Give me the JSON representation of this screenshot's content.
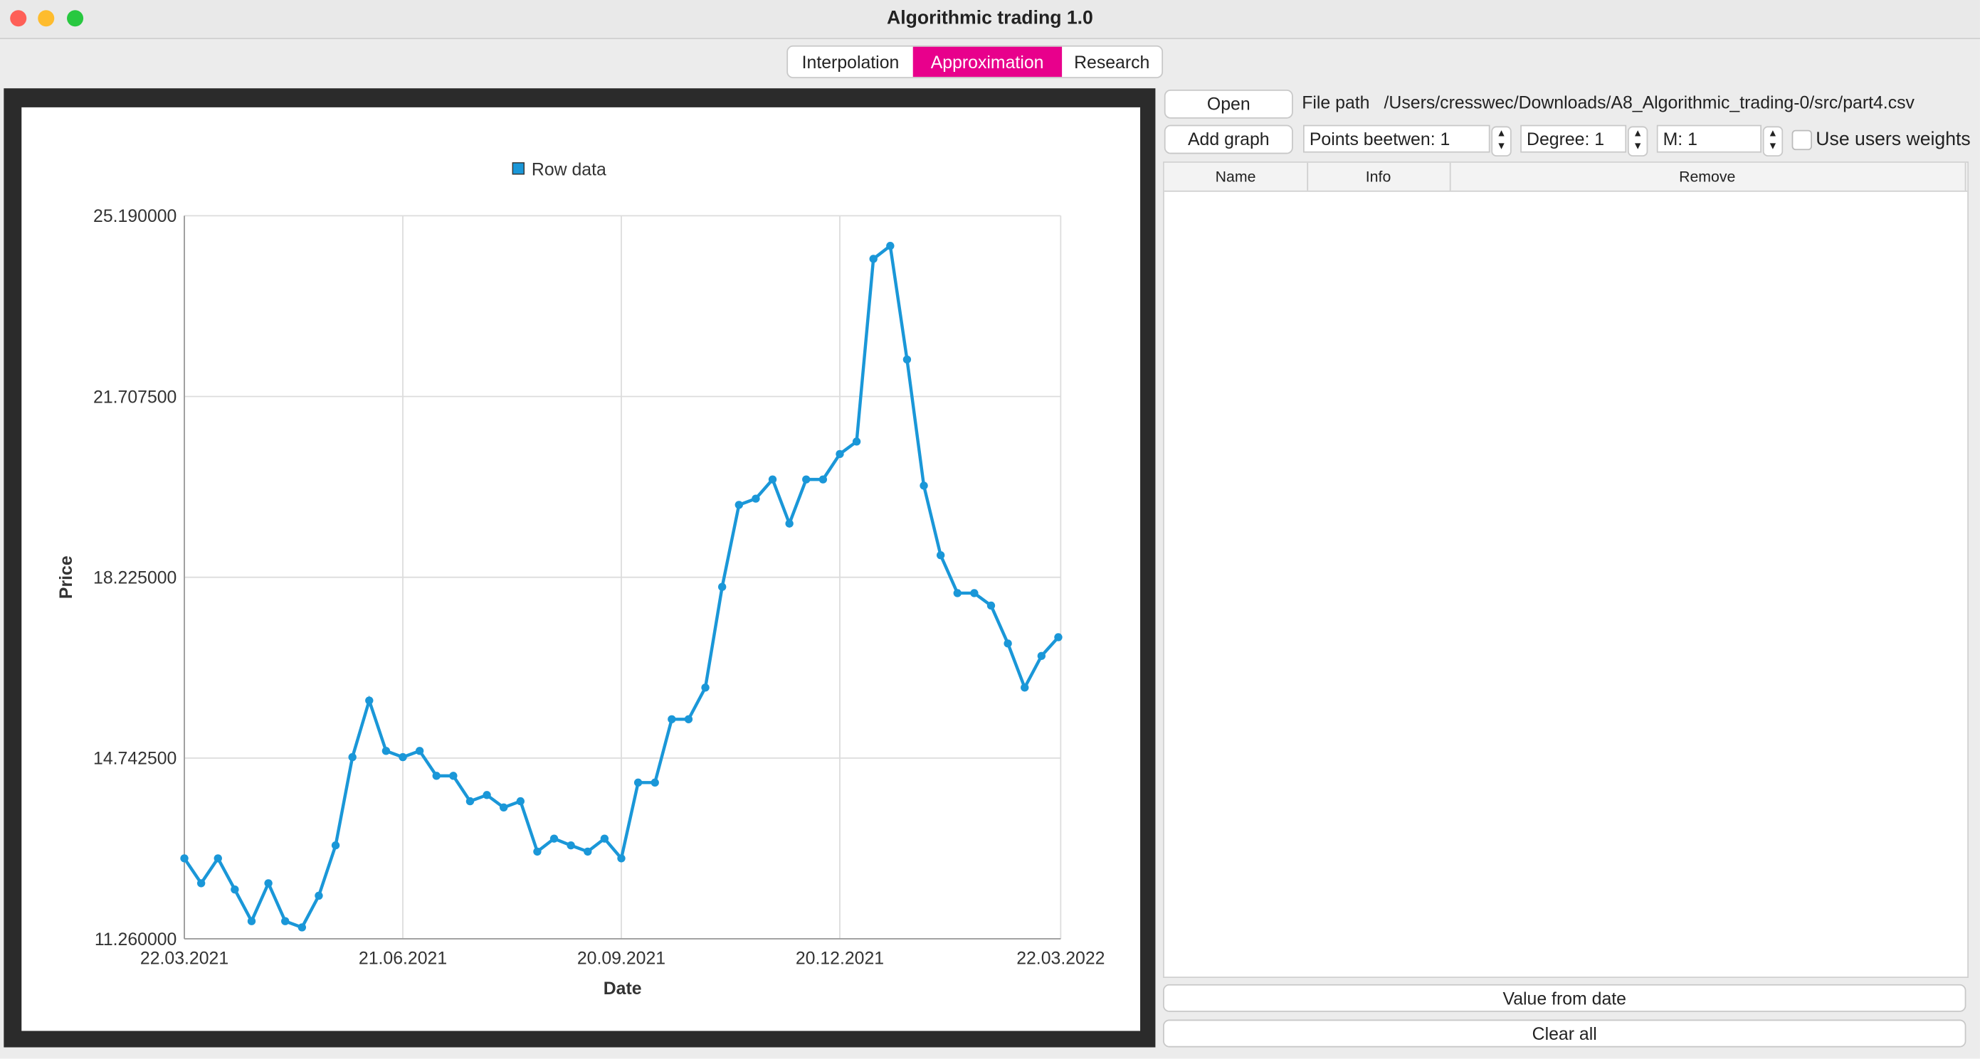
{
  "window_title": "Algorithmic trading 1.0",
  "tabs": [
    "Interpolation",
    "Approximation",
    "Research"
  ],
  "controls": {
    "open": "Open",
    "file_path_label": "File path",
    "file_path": "/Users/cresswec/Downloads/A8_Algorithmic_trading-0/src/part4.csv",
    "add_graph": "Add graph",
    "points_between": "Points beetwen: 1",
    "degree": "Degree: 1",
    "m": "M: 1",
    "use_weights": "Use users weights"
  },
  "table": {
    "headers": [
      "Name",
      "Info",
      "Remove"
    ]
  },
  "buttons": {
    "value_from_date": "Value from date",
    "clear_all": "Clear all"
  },
  "chart_data": {
    "type": "line",
    "x_label": "Date",
    "y_label": "Price",
    "x": [
      "2021-03-22",
      "2021-03-29",
      "2021-04-05",
      "2021-04-12",
      "2021-04-19",
      "2021-04-26",
      "2021-05-03",
      "2021-05-10",
      "2021-05-17",
      "2021-05-24",
      "2021-05-31",
      "2021-06-07",
      "2021-06-14",
      "2021-06-21",
      "2021-06-28",
      "2021-07-05",
      "2021-07-12",
      "2021-07-19",
      "2021-07-26",
      "2021-08-02",
      "2021-08-09",
      "2021-08-16",
      "2021-08-23",
      "2021-08-30",
      "2021-09-06",
      "2021-09-13",
      "2021-09-20",
      "2021-09-27",
      "2021-10-04",
      "2021-10-11",
      "2021-10-18",
      "2021-10-25",
      "2021-11-01",
      "2021-11-08",
      "2021-11-15",
      "2021-11-22",
      "2021-11-29",
      "2021-12-06",
      "2021-12-13",
      "2021-12-20",
      "2021-12-27",
      "2022-01-03",
      "2022-01-10",
      "2022-01-17",
      "2022-01-24",
      "2022-01-31",
      "2022-02-07",
      "2022-02-14",
      "2022-02-21",
      "2022-02-28",
      "2022-03-07",
      "2022-03-14",
      "2022-03-21"
    ],
    "series": [
      {
        "name": "Row data",
        "color": "#1a97d8",
        "values": [
          12.81,
          12.33,
          12.81,
          12.21,
          11.6,
          12.33,
          11.6,
          11.48,
          12.09,
          13.06,
          14.76,
          15.85,
          14.88,
          14.76,
          14.88,
          14.4,
          14.4,
          13.91,
          14.03,
          13.79,
          13.91,
          12.94,
          13.19,
          13.06,
          12.94,
          13.19,
          12.81,
          14.27,
          14.27,
          15.49,
          15.49,
          16.1,
          18.04,
          19.62,
          19.74,
          20.11,
          19.26,
          20.11,
          20.11,
          20.6,
          20.84,
          24.36,
          24.61,
          22.42,
          19.99,
          18.65,
          17.92,
          17.92,
          17.68,
          16.95,
          16.1,
          16.71,
          17.07
        ]
      }
    ],
    "xlim": [
      "2021-03-22",
      "2022-03-22"
    ],
    "xticks": [
      {
        "value": "2021-03-22",
        "label": "22.03.2021"
      },
      {
        "value": "2021-06-21",
        "label": "21.06.2021"
      },
      {
        "value": "2021-09-20",
        "label": "20.09.2021"
      },
      {
        "value": "2021-12-20",
        "label": "20.12.2021"
      },
      {
        "value": "2022-03-22",
        "label": "22.03.2022"
      }
    ],
    "ylim": [
      11.26,
      25.19
    ],
    "yticks": [
      {
        "value": 11.26,
        "label": "11.260000"
      },
      {
        "value": 14.7425,
        "label": "14.742500"
      },
      {
        "value": 18.225,
        "label": "18.225000"
      },
      {
        "value": 21.7075,
        "label": "21.707500"
      },
      {
        "value": 25.19,
        "label": "25.190000"
      }
    ],
    "grid": true
  }
}
